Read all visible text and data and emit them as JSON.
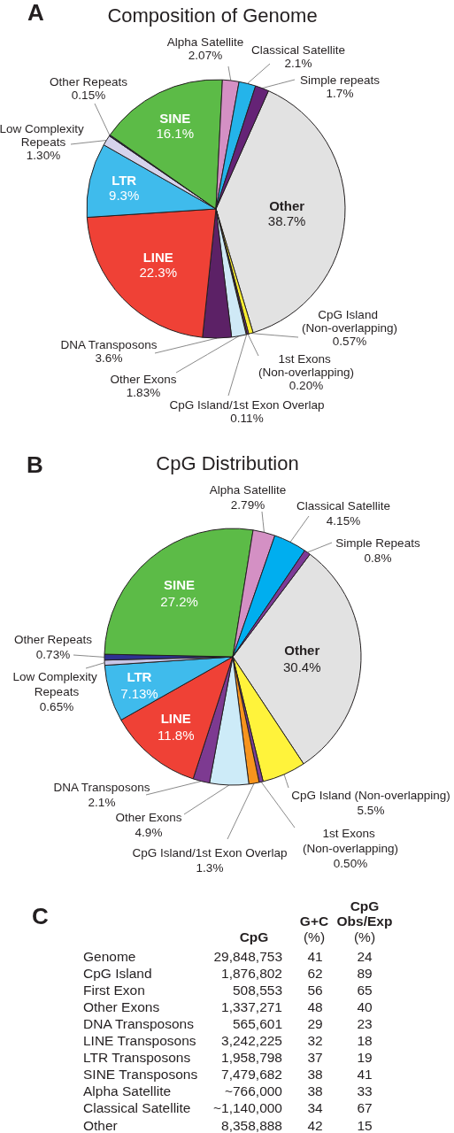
{
  "chart_data": [
    {
      "type": "pie",
      "title": "Composition of Genome",
      "annotations": [
        "A"
      ],
      "categories": [
        "Other",
        "CpG Island (Non-overlapping)",
        "1st Exons (Non-overlapping)",
        "CpG Island/1st Exon Overlap",
        "Other Exons",
        "DNA Transposons",
        "LINE",
        "LTR",
        "Low Complexity Repeats",
        "Other Repeats",
        "SINE",
        "Alpha Satellite",
        "Classical Satellite",
        "Simple repeats"
      ],
      "values": [
        38.7,
        0.57,
        0.2,
        0.11,
        1.83,
        3.6,
        22.3,
        9.3,
        1.3,
        0.15,
        16.1,
        2.07,
        2.1,
        1.7
      ],
      "value_labels": [
        "38.7%",
        "0.57%",
        "0.20%",
        "0.11%",
        "1.83%",
        "3.6%",
        "22.3%",
        "9.3%",
        "1.30%",
        "0.15%",
        "16.1%",
        "2.07%",
        "2.1%",
        "1.7%"
      ],
      "colors": [
        "#e2e2e2",
        "#f9ed32",
        "#7b3f98",
        "#f7941d",
        "#cfe9f6",
        "#5c2166",
        "#ef4136",
        "#3fbbec",
        "#d6d3ec",
        "#262262",
        "#5cbb47",
        "#d490c4",
        "#24b4ea",
        "#652376"
      ]
    },
    {
      "type": "pie",
      "title": "CpG Distribution",
      "annotations": [
        "B"
      ],
      "categories": [
        "Other",
        "CpG Island (Non-overlapping)",
        "1st Exons (Non-overlapping)",
        "CpG Island/1st Exon Overlap",
        "Other Exons",
        "DNA Transposons",
        "LINE",
        "LTR",
        "Low Complexity Repeats",
        "Other Repeats",
        "SINE",
        "Alpha Satellite",
        "Classical Satellite",
        "Simple Repeats"
      ],
      "values": [
        30.4,
        5.5,
        0.5,
        1.3,
        4.9,
        2.1,
        11.8,
        7.13,
        0.65,
        0.73,
        27.2,
        2.79,
        4.15,
        0.8
      ],
      "value_labels": [
        "30.4%",
        "5.5%",
        "0.50%",
        "1.3%",
        "4.9%",
        "2.1%",
        "11.8%",
        "7.13%",
        "0.65%",
        "0.73%",
        "27.2%",
        "2.79%",
        "4.15%",
        "0.8%"
      ],
      "colors": [
        "#e2e2e2",
        "#fff33b",
        "#7b3f98",
        "#f7941d",
        "#cdebf8",
        "#7d3a91",
        "#ef4136",
        "#3fbbec",
        "#c9c6e8",
        "#2e3192",
        "#5cbb47",
        "#d490c4",
        "#00aeef",
        "#7d3a96"
      ]
    },
    {
      "type": "other",
      "annotations": [
        "C"
      ],
      "categories": [
        "Genome",
        "CpG Island",
        "First Exon",
        "Other Exons",
        "DNA Transposons",
        "LINE Transposons",
        "LTR Transposons",
        "SINE Transposons",
        "Alpha Satellite",
        "Classical Satellite",
        "Other"
      ],
      "series": [
        {
          "name": "CpG",
          "values": [
            29848753,
            1876802,
            508553,
            1337271,
            565601,
            3242225,
            1958798,
            7479682,
            766000,
            1140000,
            8358888
          ],
          "value_labels": [
            "29,848,753",
            "1,876,802",
            "508,553",
            "1,337,271",
            "565,601",
            "3,242,225",
            "1,958,798",
            "7,479,682",
            "~766,000",
            "~1,140,000",
            "8,358,888"
          ]
        },
        {
          "name": "G+C (%)",
          "values": [
            41,
            62,
            56,
            48,
            29,
            32,
            37,
            38,
            38,
            34,
            42
          ]
        },
        {
          "name": "CpG Obs/Exp (%)",
          "values": [
            24,
            89,
            65,
            40,
            23,
            18,
            19,
            41,
            33,
            67,
            15
          ]
        }
      ],
      "data_labels": true
    }
  ]
}
